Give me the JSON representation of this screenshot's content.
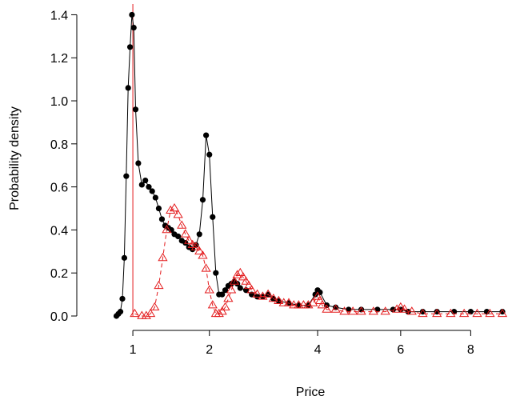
{
  "chart_data": {
    "type": "scatter",
    "title": "",
    "xlabel": "Price",
    "ylabel": "Probability density",
    "x_scale": "sqrt",
    "xlim": [
      0.6,
      9.0
    ],
    "ylim": [
      0,
      1.45
    ],
    "x_ticks": [
      1,
      2,
      4,
      6,
      8
    ],
    "y_ticks": [
      0.0,
      0.2,
      0.4,
      0.6,
      0.8,
      1.0,
      1.2,
      1.4
    ],
    "y_tick_labels": [
      "0.0",
      "0.2",
      "0.4",
      "0.6",
      "0.8",
      "1.0",
      "1.2",
      "1.4"
    ],
    "grid": false,
    "reference_line": {
      "x": 1.0,
      "color": "#e31a1c"
    },
    "series": [
      {
        "marker": "filled-circle",
        "line": "solid",
        "color": "#000000",
        "x": [
          0.83,
          0.85,
          0.87,
          0.89,
          0.91,
          0.93,
          0.95,
          0.97,
          0.99,
          1.01,
          1.03,
          1.06,
          1.1,
          1.14,
          1.18,
          1.22,
          1.26,
          1.3,
          1.34,
          1.38,
          1.42,
          1.46,
          1.5,
          1.55,
          1.6,
          1.65,
          1.7,
          1.75,
          1.8,
          1.85,
          1.9,
          1.95,
          2.0,
          2.05,
          2.1,
          2.15,
          2.2,
          2.25,
          2.3,
          2.35,
          2.4,
          2.45,
          2.5,
          2.6,
          2.7,
          2.8,
          2.9,
          3.0,
          3.1,
          3.2,
          3.4,
          3.6,
          3.8,
          3.95,
          4.0,
          4.05,
          4.2,
          4.4,
          4.7,
          5.0,
          5.4,
          5.8,
          6.0,
          6.2,
          6.6,
          7.0,
          7.5,
          8.0,
          8.5,
          9.0
        ],
        "y": [
          0.0,
          0.01,
          0.02,
          0.08,
          0.27,
          0.65,
          1.06,
          1.25,
          1.4,
          1.34,
          0.96,
          0.71,
          0.61,
          0.63,
          0.6,
          0.58,
          0.55,
          0.5,
          0.45,
          0.42,
          0.41,
          0.4,
          0.38,
          0.37,
          0.35,
          0.34,
          0.32,
          0.31,
          0.33,
          0.38,
          0.54,
          0.84,
          0.75,
          0.46,
          0.2,
          0.1,
          0.1,
          0.12,
          0.14,
          0.15,
          0.16,
          0.15,
          0.13,
          0.12,
          0.1,
          0.09,
          0.09,
          0.1,
          0.08,
          0.07,
          0.06,
          0.05,
          0.05,
          0.1,
          0.12,
          0.11,
          0.05,
          0.04,
          0.03,
          0.03,
          0.03,
          0.03,
          0.03,
          0.02,
          0.02,
          0.02,
          0.02,
          0.02,
          0.02,
          0.02
        ]
      },
      {
        "marker": "open-triangle",
        "line": "dashed",
        "color": "#e31a1c",
        "x": [
          1.02,
          1.1,
          1.15,
          1.2,
          1.25,
          1.3,
          1.35,
          1.4,
          1.45,
          1.5,
          1.55,
          1.6,
          1.65,
          1.7,
          1.75,
          1.8,
          1.85,
          1.9,
          1.95,
          2.0,
          2.05,
          2.1,
          2.15,
          2.2,
          2.25,
          2.3,
          2.35,
          2.4,
          2.45,
          2.5,
          2.55,
          2.6,
          2.65,
          2.7,
          2.8,
          2.9,
          3.0,
          3.1,
          3.2,
          3.3,
          3.4,
          3.5,
          3.6,
          3.7,
          3.8,
          3.9,
          4.0,
          4.05,
          4.1,
          4.2,
          4.4,
          4.6,
          4.8,
          5.0,
          5.3,
          5.6,
          5.9,
          6.0,
          6.1,
          6.3,
          6.6,
          7.0,
          7.4,
          7.8,
          8.2,
          8.6,
          9.0
        ],
        "y": [
          0.01,
          0.0,
          0.0,
          0.01,
          0.04,
          0.14,
          0.27,
          0.4,
          0.49,
          0.5,
          0.47,
          0.42,
          0.38,
          0.35,
          0.33,
          0.32,
          0.3,
          0.28,
          0.22,
          0.12,
          0.05,
          0.01,
          0.01,
          0.02,
          0.04,
          0.08,
          0.12,
          0.16,
          0.19,
          0.2,
          0.18,
          0.16,
          0.14,
          0.12,
          0.1,
          0.09,
          0.1,
          0.08,
          0.07,
          0.06,
          0.06,
          0.05,
          0.05,
          0.05,
          0.05,
          0.06,
          0.09,
          0.07,
          0.05,
          0.03,
          0.03,
          0.02,
          0.02,
          0.02,
          0.02,
          0.02,
          0.03,
          0.04,
          0.03,
          0.02,
          0.01,
          0.01,
          0.01,
          0.01,
          0.01,
          0.01,
          0.01
        ]
      }
    ]
  }
}
